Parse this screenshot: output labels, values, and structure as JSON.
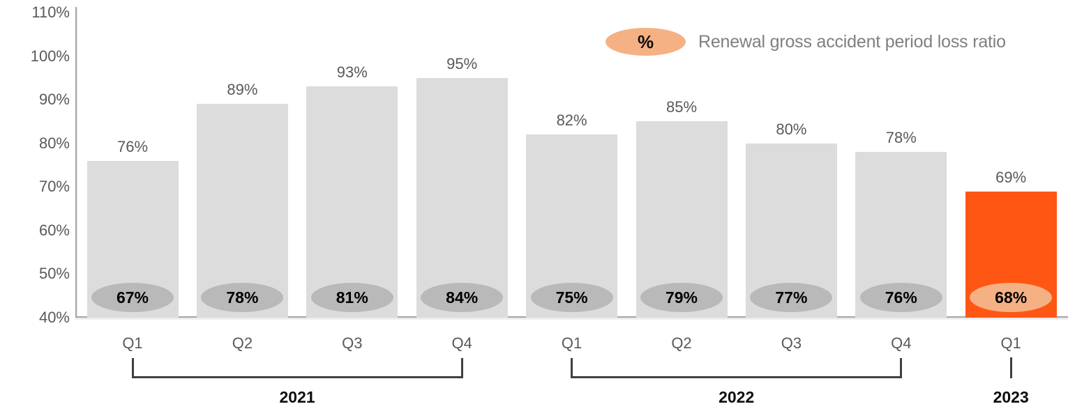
{
  "chart_data": {
    "type": "bar",
    "title": "",
    "xlabel": "",
    "ylabel": "",
    "categories": [
      "Q1",
      "Q2",
      "Q3",
      "Q4",
      "Q1",
      "Q2",
      "Q3",
      "Q4",
      "Q1"
    ],
    "year_groups": [
      {
        "label": "2021",
        "start": 0,
        "end": 3
      },
      {
        "label": "2022",
        "start": 4,
        "end": 7
      },
      {
        "label": "2023",
        "start": 8,
        "end": 8
      }
    ],
    "series": [
      {
        "name": "Gross accident period loss ratio (bar height, top label)",
        "values": [
          76,
          89,
          93,
          95,
          82,
          85,
          80,
          78,
          69
        ]
      },
      {
        "name": "Renewal gross accident period loss ratio (ellipse badge)",
        "values": [
          67,
          78,
          81,
          84,
          75,
          79,
          77,
          76,
          68
        ]
      }
    ],
    "value_suffix": "%",
    "highlight_index": 8,
    "ylim": [
      40,
      110
    ],
    "y_ticks": [
      "110%",
      "100%",
      "90%",
      "80%",
      "70%",
      "60%",
      "50%",
      "40%"
    ],
    "y_tick_values": [
      110,
      100,
      90,
      80,
      70,
      60,
      50,
      40
    ],
    "grid": false,
    "legend": {
      "symbol": "%",
      "label": "Renewal gross accident period loss ratio",
      "position": "top-right"
    },
    "colors": {
      "bar": "#dcdcdc",
      "bar_highlight": "#ff5614",
      "badge": "#b9b9b9",
      "badge_highlight": "#f5b183",
      "legend_ellipse": "#f5b183",
      "axis_line": "#a6a6a6",
      "bracket": "#404040",
      "label_text": "#595959",
      "legend_text": "#7f7f7f"
    }
  }
}
